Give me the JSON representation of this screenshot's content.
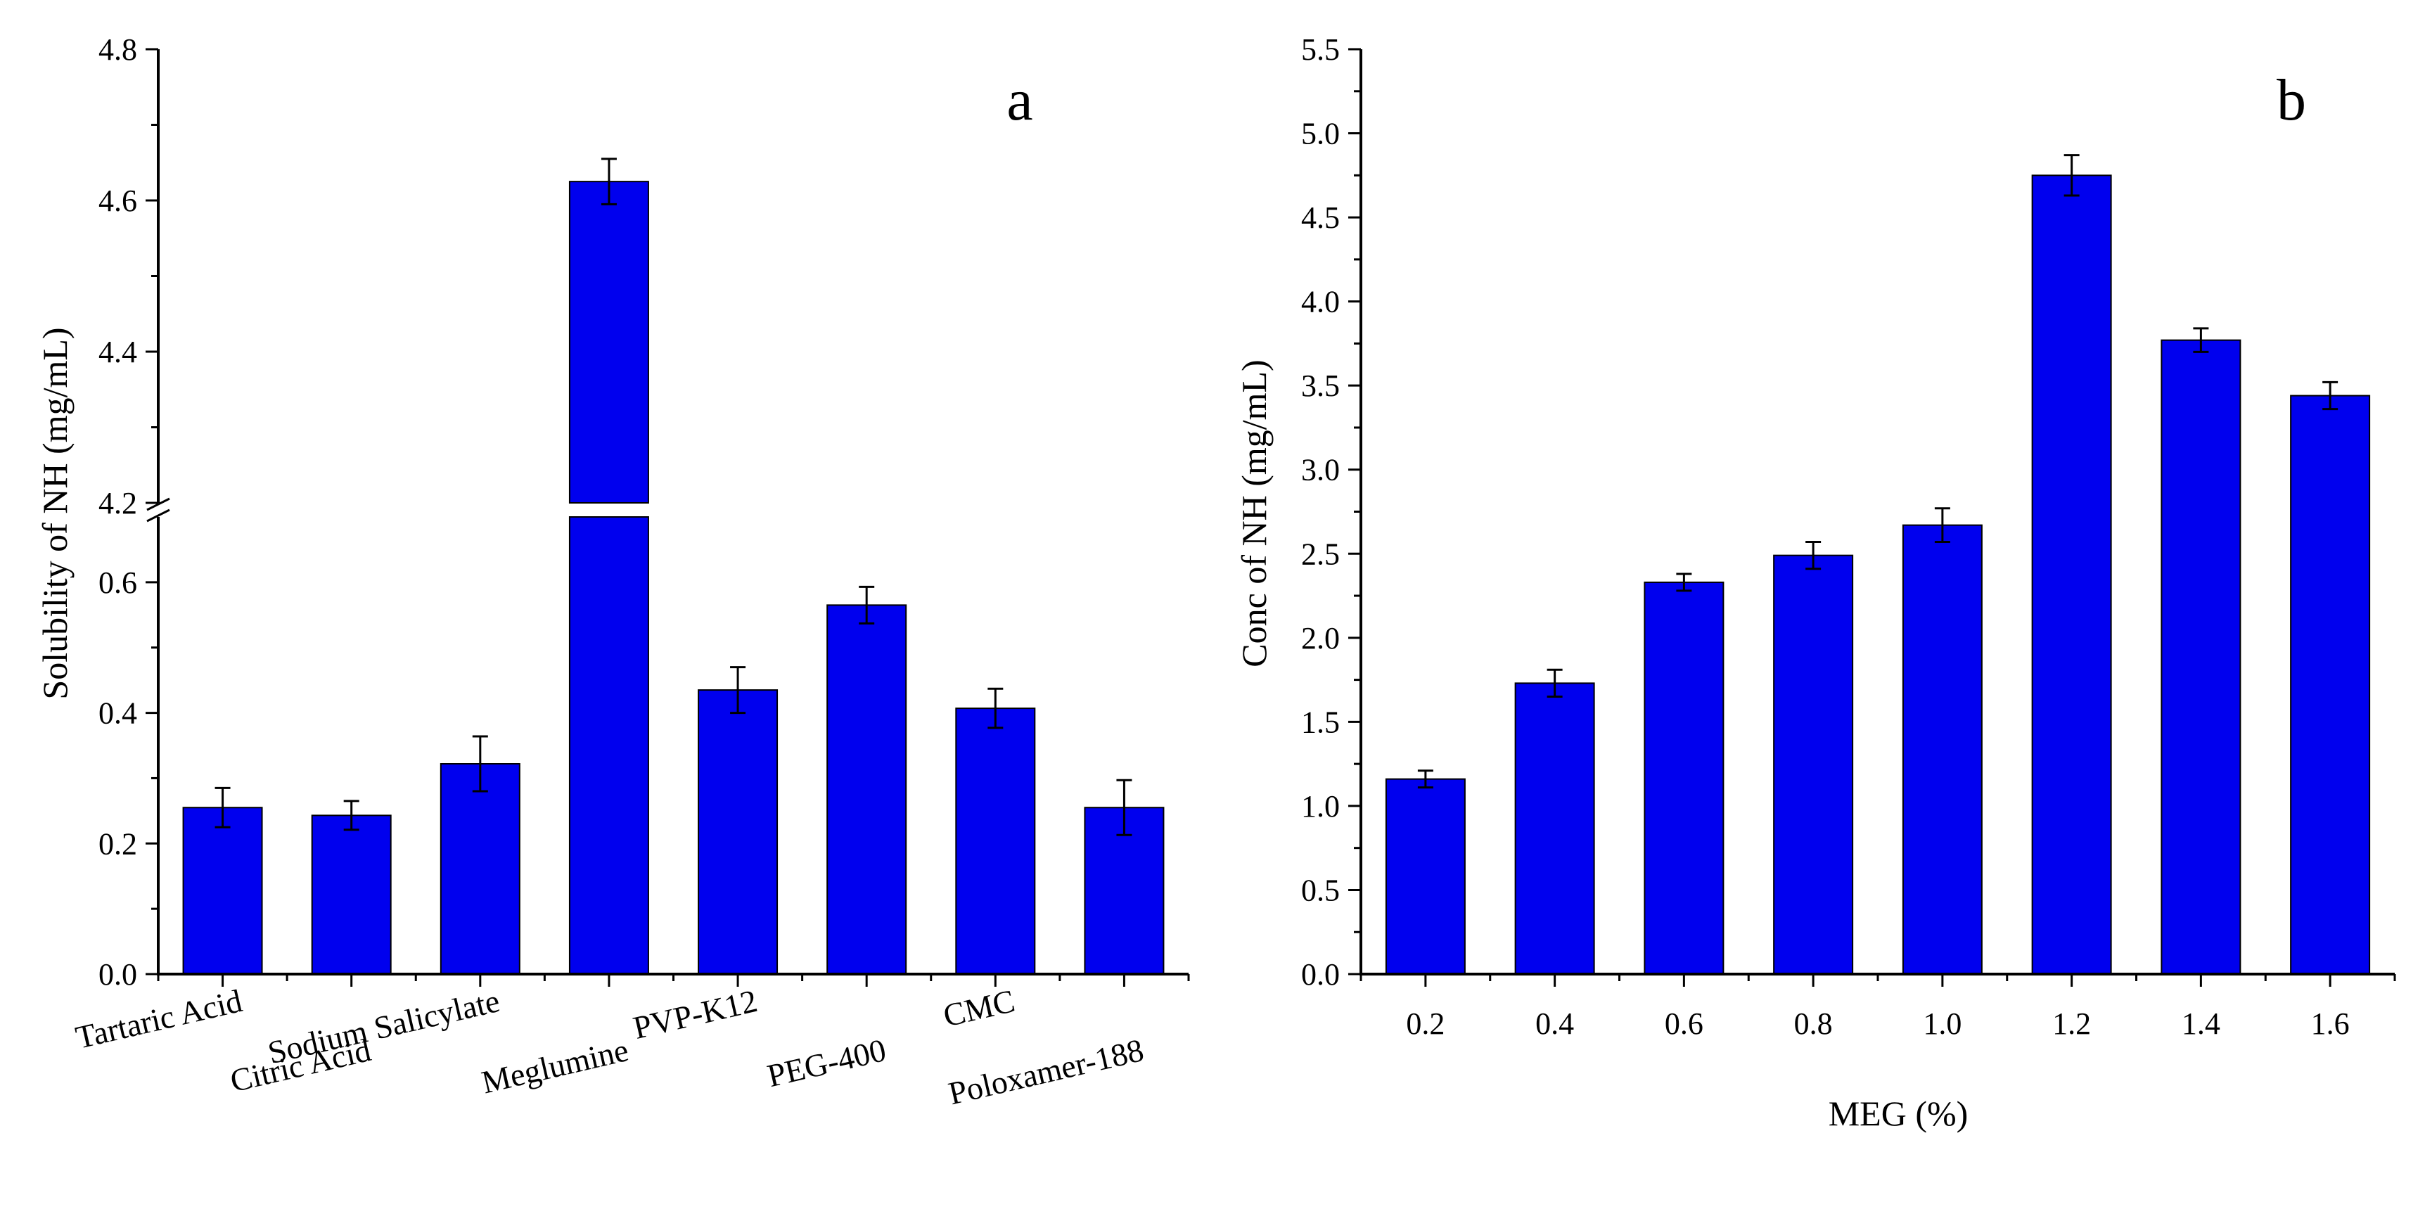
{
  "colors": {
    "bar": "#0000ee",
    "edge": "#000000",
    "axis": "#000000"
  },
  "chart_data": [
    {
      "type": "bar",
      "panel_label": "a",
      "ylabel": "Solubility of NH (mg/mL)",
      "xlabel": "",
      "categories": [
        "Tartaric Acid",
        "Citric Acid",
        "Sodium Salicylate",
        "Meglumine",
        "PVP-K12",
        "PEG-400",
        "CMC",
        "Poloxamer-188"
      ],
      "values": [
        0.255,
        0.243,
        0.322,
        4.625,
        0.435,
        0.565,
        0.407,
        0.255
      ],
      "errors": [
        0.03,
        0.022,
        0.042,
        0.03,
        0.035,
        0.028,
        0.03,
        0.042
      ],
      "axis_break": {
        "lower": [
          0.0,
          0.7
        ],
        "upper": [
          4.2,
          4.8
        ]
      },
      "yticks_lower": [
        "0.0",
        "0.2",
        "0.4",
        "0.6"
      ],
      "yticks_upper": [
        "4.2",
        "4.4",
        "4.6",
        "4.8"
      ],
      "grid": false
    },
    {
      "type": "bar",
      "panel_label": "b",
      "ylabel": "Conc of NH (mg/mL)",
      "xlabel": "MEG (%)",
      "categories": [
        "0.2",
        "0.4",
        "0.6",
        "0.8",
        "1.0",
        "1.2",
        "1.4",
        "1.6"
      ],
      "values": [
        1.16,
        1.73,
        2.33,
        2.49,
        2.67,
        4.75,
        3.77,
        3.44
      ],
      "errors": [
        0.05,
        0.08,
        0.05,
        0.08,
        0.1,
        0.12,
        0.07,
        0.08
      ],
      "ylim": [
        0.0,
        5.5
      ],
      "yticks": [
        "0.0",
        "0.5",
        "1.0",
        "1.5",
        "2.0",
        "2.5",
        "3.0",
        "3.5",
        "4.0",
        "4.5",
        "5.0",
        "5.5"
      ],
      "grid": false
    }
  ]
}
